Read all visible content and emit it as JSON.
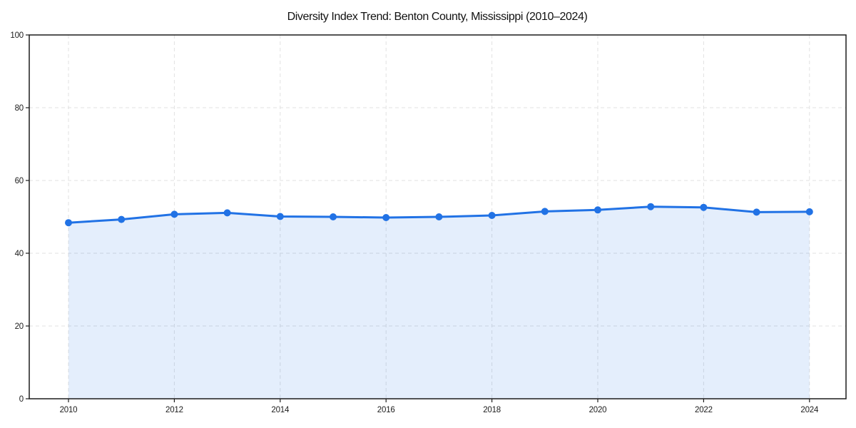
{
  "page": {
    "background_color": "#ffffff"
  },
  "chart_data": {
    "type": "line",
    "title": "Diversity Index Trend: Benton County, Mississippi (2010–2024)",
    "x": [
      2010,
      2011,
      2012,
      2013,
      2014,
      2015,
      2016,
      2017,
      2018,
      2019,
      2020,
      2021,
      2022,
      2023,
      2024
    ],
    "series": [
      {
        "name": "Diversity Index",
        "values": [
          48.4,
          49.3,
          50.7,
          51.1,
          50.1,
          50.0,
          49.8,
          50.0,
          50.4,
          51.5,
          51.9,
          52.8,
          52.6,
          51.3,
          51.4
        ],
        "line_color": "#2172e5",
        "fill_color": "rgba(33, 114, 229, 0.12)",
        "marker": "circle",
        "marker_radius": 5,
        "line_width": 3
      }
    ],
    "xlabel": "",
    "ylabel": "",
    "ylim": [
      0,
      100
    ],
    "yticks": [
      0,
      20,
      40,
      60,
      80,
      100
    ],
    "xticks": [
      2010,
      2012,
      2014,
      2016,
      2018,
      2020,
      2022,
      2024
    ],
    "grid": true,
    "grid_color": "#e1e1e1",
    "grid_style": "dashed",
    "axis_color": "#1c1c1c",
    "legend_position": "none",
    "plot_background": "#ffffff"
  }
}
